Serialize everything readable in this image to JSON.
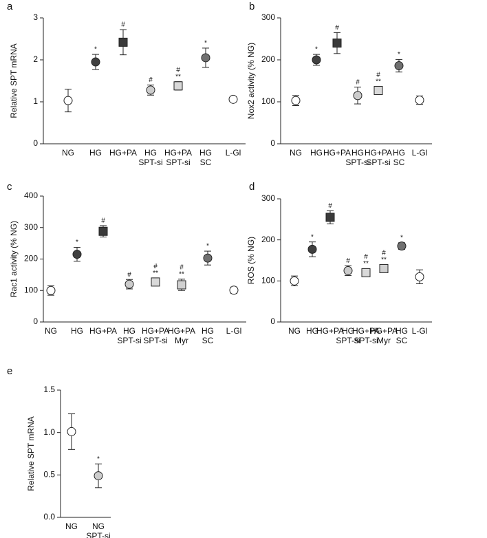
{
  "chart_data": [
    {
      "type": "errorbar",
      "panel_label": "a",
      "ylabel": "Relative SPT mRNA",
      "categories": [
        [
          "NG"
        ],
        [
          "HG"
        ],
        [
          "HG+PA"
        ],
        [
          "HG",
          "SPT-si"
        ],
        [
          "HG+PA",
          "SPT-si"
        ],
        [
          "HG",
          "SC"
        ],
        [
          "L-Gl"
        ]
      ],
      "values": [
        1.03,
        1.95,
        2.42,
        1.28,
        1.38,
        2.05,
        1.06
      ],
      "errors": [
        0.27,
        0.18,
        0.3,
        0.12,
        0.1,
        0.23,
        0.03
      ],
      "markers": [
        null,
        [
          "*"
        ],
        [
          "#"
        ],
        [
          "#"
        ],
        [
          "#",
          "**"
        ],
        [
          "*"
        ],
        null
      ],
      "shapes": [
        "circle",
        "circle",
        "square",
        "circle",
        "square",
        "circle",
        "circle"
      ],
      "colors": [
        "#ffffff",
        "#404040",
        "#3a3a3a",
        "#cccccc",
        "#d9d9d9",
        "#707070",
        "#ffffff"
      ],
      "ylim": [
        0,
        3
      ],
      "yticks": [
        0,
        1,
        2,
        3
      ]
    },
    {
      "type": "errorbar",
      "panel_label": "b",
      "ylabel": "Nox2 activity (% NG)",
      "categories": [
        [
          "NG"
        ],
        [
          "HG"
        ],
        [
          "HG+PA"
        ],
        [
          "HG",
          "SPT-si"
        ],
        [
          "HG+PA",
          "SPT-si"
        ],
        [
          "HG",
          "SC"
        ],
        [
          "L-Gl"
        ]
      ],
      "values": [
        103,
        200,
        240,
        115,
        127,
        186,
        104
      ],
      "errors": [
        12,
        13,
        25,
        20,
        9,
        15,
        10
      ],
      "markers": [
        null,
        [
          "*"
        ],
        [
          "#"
        ],
        [
          "#"
        ],
        [
          "#",
          "**"
        ],
        [
          "*"
        ],
        null
      ],
      "shapes": [
        "circle",
        "circle",
        "square",
        "circle",
        "square",
        "circle",
        "circle"
      ],
      "colors": [
        "#ffffff",
        "#404040",
        "#3a3a3a",
        "#cccccc",
        "#d9d9d9",
        "#707070",
        "#ffffff"
      ],
      "ylim": [
        0,
        300
      ],
      "yticks": [
        0,
        100,
        200,
        300
      ]
    },
    {
      "type": "errorbar",
      "panel_label": "c",
      "ylabel": "Rac1 activity (% NG)",
      "categories": [
        [
          "NG"
        ],
        [
          "HG"
        ],
        [
          "HG+PA"
        ],
        [
          "HG",
          "SPT-si"
        ],
        [
          "HG+PA",
          "SPT-si"
        ],
        [
          "HG+PA",
          "Myr"
        ],
        [
          "HG",
          "SC"
        ],
        [
          "L-Gl"
        ]
      ],
      "values": [
        100,
        215,
        288,
        120,
        127,
        118,
        203,
        101
      ],
      "errors": [
        15,
        22,
        18,
        15,
        12,
        18,
        22,
        10
      ],
      "markers": [
        null,
        [
          "*"
        ],
        [
          "#"
        ],
        [
          "#"
        ],
        [
          "#",
          "**"
        ],
        [
          "#",
          "**"
        ],
        [
          "*"
        ],
        null
      ],
      "shapes": [
        "circle",
        "circle",
        "square",
        "circle",
        "square",
        "square",
        "circle",
        "circle"
      ],
      "colors": [
        "#ffffff",
        "#404040",
        "#3a3a3a",
        "#cccccc",
        "#d9d9d9",
        "#d0d0d0",
        "#707070",
        "#ffffff"
      ],
      "ylim": [
        0,
        400
      ],
      "yticks": [
        0,
        100,
        200,
        300,
        400
      ]
    },
    {
      "type": "errorbar",
      "panel_label": "d",
      "ylabel": "ROS (% NG)",
      "categories": [
        [
          "NG"
        ],
        [
          "HG"
        ],
        [
          "HG+PA"
        ],
        [
          "HG",
          "SPT-si"
        ],
        [
          "HG+PA",
          "SPT-si"
        ],
        [
          "HG+PA",
          "Myr"
        ],
        [
          "HG",
          "SC"
        ],
        [
          "L-Gl"
        ]
      ],
      "values": [
        100,
        177,
        255,
        125,
        120,
        130,
        185,
        110
      ],
      "errors": [
        12,
        18,
        16,
        12,
        10,
        9,
        8,
        17
      ],
      "markers": [
        null,
        [
          "*"
        ],
        [
          "#"
        ],
        [
          "#"
        ],
        [
          "#",
          "**"
        ],
        [
          "#",
          "**"
        ],
        [
          "*"
        ],
        null
      ],
      "shapes": [
        "circle",
        "circle",
        "square",
        "circle",
        "square",
        "square",
        "circle",
        "circle"
      ],
      "colors": [
        "#ffffff",
        "#404040",
        "#3a3a3a",
        "#cccccc",
        "#d9d9d9",
        "#d0d0d0",
        "#707070",
        "#ffffff"
      ],
      "ylim": [
        0,
        300
      ],
      "yticks": [
        0,
        100,
        200,
        300
      ]
    },
    {
      "type": "errorbar",
      "panel_label": "e",
      "ylabel": "Relative SPT mRNA",
      "categories": [
        [
          "NG"
        ],
        [
          "NG",
          "SPT-si"
        ]
      ],
      "values": [
        1.01,
        0.49
      ],
      "errors": [
        0.21,
        0.14
      ],
      "markers": [
        null,
        [
          "*"
        ]
      ],
      "shapes": [
        "circle",
        "circle"
      ],
      "colors": [
        "#ffffff",
        "#cccccc"
      ],
      "ylim": [
        0,
        1.5
      ],
      "yticks": [
        {
          "value": 0,
          "label": "0.0"
        },
        {
          "value": 0.5,
          "label": "0.5"
        },
        {
          "value": 1,
          "label": "1.0"
        },
        {
          "value": 1.5,
          "label": "1.5"
        }
      ]
    }
  ]
}
